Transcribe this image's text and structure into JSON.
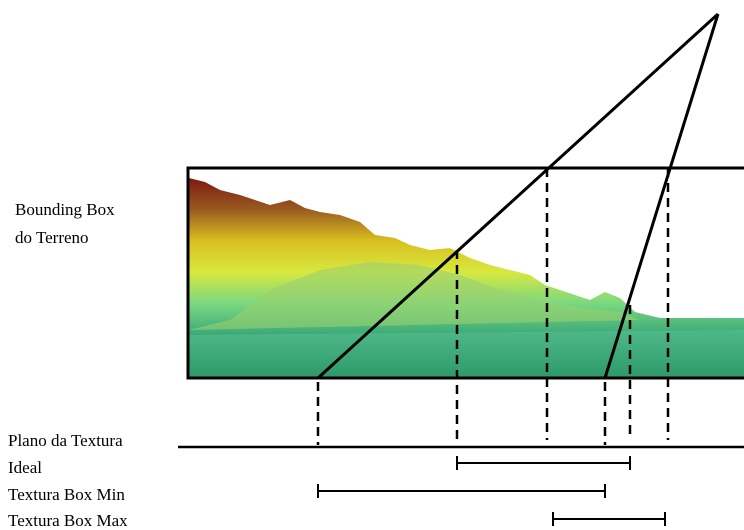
{
  "labels": {
    "bounding_box": [
      "Bounding Box",
      "do Terreno"
    ],
    "plane": "Plano da Textura",
    "ideal": "Ideal",
    "box_min": "Textura Box Min",
    "box_max": "Textura Box Max"
  }
}
